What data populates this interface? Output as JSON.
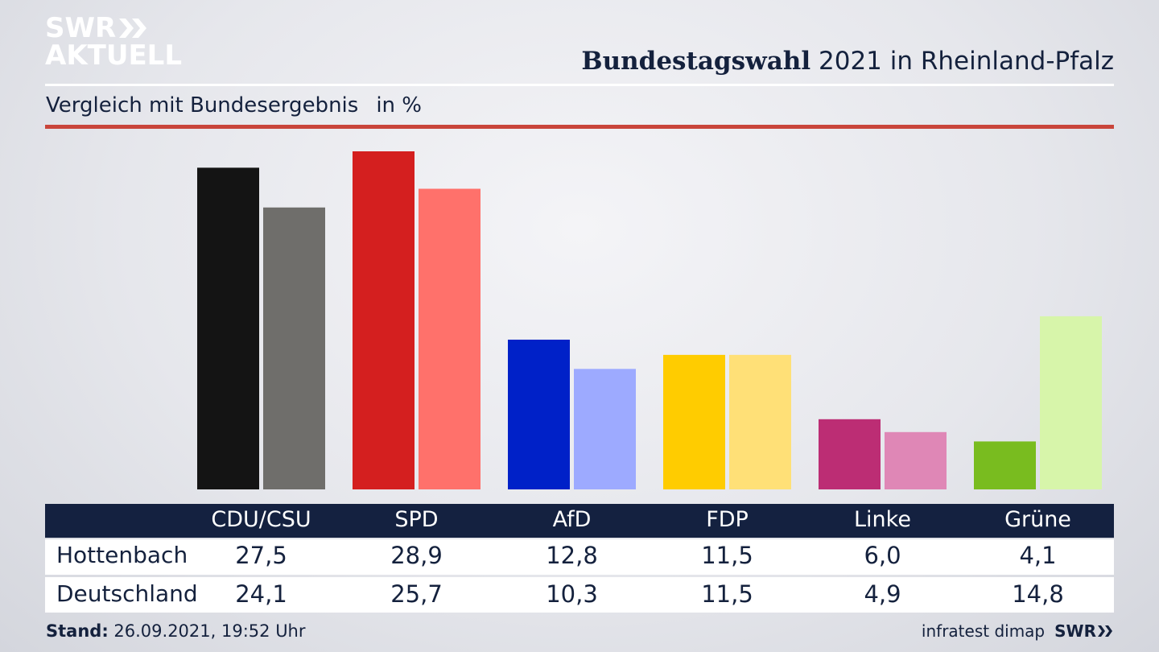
{
  "logo": {
    "line1": "SWR",
    "line2": "AKTUELL"
  },
  "header": {
    "title_bold": "Bundestagswahl",
    "title_rest": "2021 in Rheinland-Pfalz",
    "subtitle": "Vergleich mit Bundesergebnis",
    "unit": "in %"
  },
  "colors": {
    "hottenbach": [
      "#141414",
      "#d41f1f",
      "#0021c8",
      "#ffcc00",
      "#bc2d74",
      "#79bc1f"
    ],
    "deutschland": [
      "#6f6e6b",
      "#ff716b",
      "#9daaff",
      "#ffe077",
      "#df87b6",
      "#d7f5aa"
    ],
    "accent_red": "#c9453b",
    "navy": "#142140"
  },
  "chart_data": {
    "type": "bar",
    "categories": [
      "CDU/CSU",
      "SPD",
      "AfD",
      "FDP",
      "Linke",
      "Grüne"
    ],
    "series": [
      {
        "name": "Hottenbach",
        "values": [
          27.5,
          28.9,
          12.8,
          11.5,
          6.0,
          4.1
        ]
      },
      {
        "name": "Deutschland",
        "values": [
          24.1,
          25.7,
          10.3,
          11.5,
          4.9,
          14.8
        ]
      }
    ],
    "value_labels": {
      "Hottenbach": [
        "27,5",
        "28,9",
        "12,8",
        "11,5",
        "6,0",
        "4,1"
      ],
      "Deutschland": [
        "24,1",
        "25,7",
        "10,3",
        "11,5",
        "4,9",
        "14,8"
      ]
    },
    "ylim": [
      0,
      28.9
    ],
    "grid": false
  },
  "table": {
    "row_labels": [
      "Hottenbach",
      "Deutschland"
    ]
  },
  "footer": {
    "stand_label": "Stand:",
    "stand_value": "26.09.2021, 19:52 Uhr",
    "source": "infratest dimap",
    "brand": "SWR"
  }
}
